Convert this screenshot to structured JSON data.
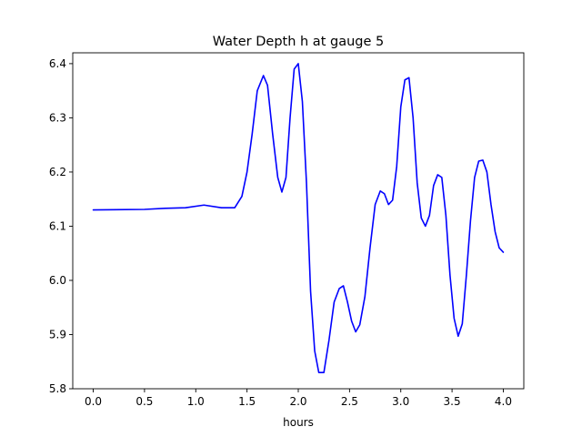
{
  "chart_data": {
    "type": "line",
    "title": "Water Depth h at gauge 5",
    "xlabel": "hours",
    "ylabel": "",
    "xlim": [
      -0.2,
      4.2
    ],
    "ylim": [
      5.8,
      6.42
    ],
    "xticks": [
      0.0,
      0.5,
      1.0,
      1.5,
      2.0,
      2.5,
      3.0,
      3.5,
      4.0
    ],
    "xtick_labels": [
      "0.0",
      "0.5",
      "1.0",
      "1.5",
      "2.0",
      "2.5",
      "3.0",
      "3.5",
      "4.0"
    ],
    "yticks": [
      5.8,
      5.9,
      6.0,
      6.1,
      6.2,
      6.3,
      6.4
    ],
    "ytick_labels": [
      "5.8",
      "5.9",
      "6.0",
      "6.1",
      "6.2",
      "6.3",
      "6.4"
    ],
    "grid": false,
    "series": [
      {
        "color": "#0000ff",
        "x": [
          0.0,
          0.5,
          0.7,
          0.9,
          1.08,
          1.25,
          1.38,
          1.45,
          1.5,
          1.55,
          1.6,
          1.66,
          1.7,
          1.75,
          1.8,
          1.84,
          1.88,
          1.92,
          1.96,
          2.0,
          2.04,
          2.08,
          2.12,
          2.16,
          2.2,
          2.25,
          2.3,
          2.35,
          2.4,
          2.44,
          2.48,
          2.52,
          2.56,
          2.6,
          2.65,
          2.7,
          2.75,
          2.8,
          2.84,
          2.88,
          2.92,
          2.96,
          3.0,
          3.04,
          3.08,
          3.12,
          3.16,
          3.2,
          3.24,
          3.28,
          3.32,
          3.36,
          3.4,
          3.44,
          3.48,
          3.52,
          3.56,
          3.6,
          3.64,
          3.68,
          3.72,
          3.76,
          3.8,
          3.84,
          3.88,
          3.92,
          3.96,
          4.0
        ],
        "y": [
          6.13,
          6.131,
          6.133,
          6.134,
          6.139,
          6.134,
          6.134,
          6.155,
          6.2,
          6.27,
          6.35,
          6.378,
          6.36,
          6.27,
          6.19,
          6.163,
          6.19,
          6.3,
          6.39,
          6.4,
          6.33,
          6.18,
          5.98,
          5.87,
          5.83,
          5.83,
          5.89,
          5.96,
          5.985,
          5.99,
          5.96,
          5.925,
          5.905,
          5.918,
          5.97,
          6.06,
          6.14,
          6.165,
          6.16,
          6.14,
          6.148,
          6.21,
          6.32,
          6.37,
          6.374,
          6.3,
          6.18,
          6.115,
          6.1,
          6.12,
          6.175,
          6.195,
          6.19,
          6.12,
          6.01,
          5.93,
          5.897,
          5.92,
          6.01,
          6.11,
          6.19,
          6.22,
          6.222,
          6.2,
          6.14,
          6.09,
          6.06,
          6.052
        ]
      }
    ]
  }
}
